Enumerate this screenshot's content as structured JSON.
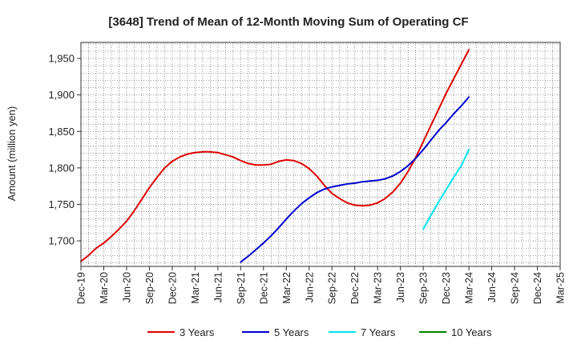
{
  "chart_data": {
    "type": "line",
    "title": "[3648]  Trend of Mean of 12-Month Moving Sum of Operating CF",
    "xlabel": "",
    "ylabel": "Amount (million yen)",
    "ylim": [
      1665,
      1972
    ],
    "yticks": [
      1700,
      1750,
      1800,
      1850,
      1900,
      1950
    ],
    "ytick_labels": [
      "1,700",
      "1,750",
      "1,800",
      "1,850",
      "1,900",
      "1,950"
    ],
    "x_categories": [
      "Dec-19",
      "Mar-20",
      "Jun-20",
      "Sep-20",
      "Dec-20",
      "Mar-21",
      "Jun-21",
      "Sep-21",
      "Dec-21",
      "Mar-22",
      "Jun-22",
      "Sep-22",
      "Dec-22",
      "Mar-23",
      "Jun-23",
      "Sep-23",
      "Dec-23",
      "Mar-24",
      "Jun-24",
      "Sep-24",
      "Dec-24",
      "Mar-25"
    ],
    "grid": true,
    "legend_position": "bottom",
    "series": [
      {
        "name": "3 Years",
        "color": "#e00000",
        "x": [
          "Dec-19",
          "Jan-20",
          "Feb-20",
          "Mar-20",
          "Apr-20",
          "May-20",
          "Jun-20",
          "Jul-20",
          "Aug-20",
          "Sep-20",
          "Oct-20",
          "Nov-20",
          "Dec-20",
          "Jan-21",
          "Feb-21",
          "Mar-21",
          "Apr-21",
          "May-21",
          "Jun-21",
          "Jul-21",
          "Aug-21",
          "Sep-21",
          "Oct-21",
          "Nov-21",
          "Dec-21",
          "Jan-22",
          "Feb-22",
          "Mar-22",
          "Apr-22",
          "May-22",
          "Jun-22",
          "Jul-22",
          "Aug-22",
          "Sep-22",
          "Oct-22",
          "Nov-22",
          "Dec-22",
          "Jan-23",
          "Feb-23",
          "Mar-23",
          "Apr-23",
          "May-23",
          "Jun-23",
          "Jul-23",
          "Aug-23",
          "Sep-23",
          "Oct-23",
          "Nov-23",
          "Dec-23",
          "Jan-24",
          "Feb-24",
          "Mar-24"
        ],
        "values": [
          1672,
          1680,
          1690,
          1697,
          1706,
          1716,
          1727,
          1741,
          1757,
          1773,
          1787,
          1800,
          1809,
          1815,
          1819,
          1821,
          1822,
          1822,
          1821,
          1818,
          1815,
          1810,
          1806,
          1804,
          1804,
          1805,
          1809,
          1811,
          1810,
          1806,
          1799,
          1789,
          1776,
          1765,
          1758,
          1752,
          1749,
          1748,
          1749,
          1752,
          1758,
          1767,
          1779,
          1795,
          1814,
          1836,
          1858,
          1880,
          1902,
          1922,
          1942,
          1962
        ]
      },
      {
        "name": "5 Years",
        "color": "#0000d0",
        "x": [
          "Sep-21",
          "Oct-21",
          "Nov-21",
          "Dec-21",
          "Jan-22",
          "Feb-22",
          "Mar-22",
          "Apr-22",
          "May-22",
          "Jun-22",
          "Jul-22",
          "Aug-22",
          "Sep-22",
          "Oct-22",
          "Nov-22",
          "Dec-22",
          "Jan-23",
          "Feb-23",
          "Mar-23",
          "Apr-23",
          "May-23",
          "Jun-23",
          "Jul-23",
          "Aug-23",
          "Sep-23",
          "Oct-23",
          "Nov-23",
          "Dec-23",
          "Jan-24",
          "Feb-24",
          "Mar-24"
        ],
        "values": [
          1671,
          1679,
          1688,
          1697,
          1707,
          1718,
          1730,
          1741,
          1751,
          1759,
          1766,
          1771,
          1774,
          1776,
          1778,
          1779,
          1781,
          1782,
          1783,
          1785,
          1789,
          1795,
          1803,
          1813,
          1825,
          1838,
          1851,
          1862,
          1874,
          1885,
          1897
        ]
      },
      {
        "name": "7 Years",
        "color": "#00e5ee",
        "x": [
          "Sep-23",
          "Oct-23",
          "Nov-23",
          "Dec-23",
          "Jan-24",
          "Feb-24",
          "Mar-24"
        ],
        "values": [
          1716,
          1735,
          1753,
          1770,
          1787,
          1803,
          1825
        ]
      },
      {
        "name": "10 Years",
        "color": "#008000",
        "x": [],
        "values": []
      }
    ]
  }
}
